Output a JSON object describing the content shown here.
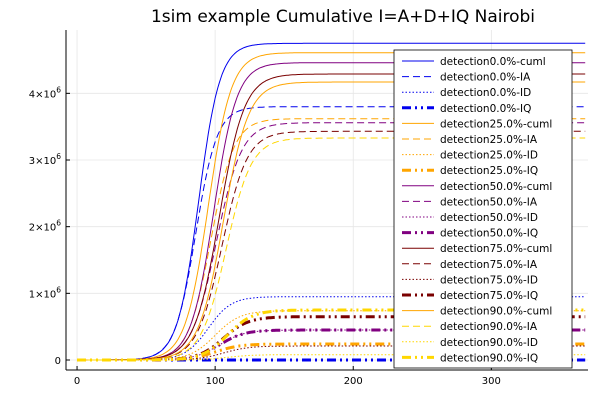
{
  "chart_data": {
    "type": "line",
    "title": "1sim example Cumulative I=A+D+IQ Nairobi",
    "xlabel": "",
    "ylabel": "",
    "xlim": [
      -8,
      370
    ],
    "ylim": [
      -150000,
      4950000
    ],
    "x_ticks": [
      0,
      100,
      200,
      300
    ],
    "x_tick_labels": [
      "0",
      "100",
      "200",
      "300"
    ],
    "y_ticks": [
      0,
      1000000,
      2000000,
      3000000,
      4000000
    ],
    "y_tick_labels": [
      {
        "base": "0",
        "exp": ""
      },
      {
        "base": "1×10",
        "exp": "6"
      },
      {
        "base": "2×10",
        "exp": "6"
      },
      {
        "base": "3×10",
        "exp": "6"
      },
      {
        "base": "4×10",
        "exp": "6"
      }
    ],
    "grid": true,
    "legend_position": "top-right",
    "colors": {
      "blue": "#0000ee",
      "orange": "#ffa500",
      "purple": "#800080",
      "maroon": "#7a0000",
      "gold": "#ffd700"
    },
    "series": [
      {
        "name": "detection0.0%-cuml",
        "color": "#0000ee",
        "style": "solid",
        "width": 1,
        "plateau": 4750000,
        "midpoint": 88,
        "rate": 0.13
      },
      {
        "name": "detection0.0%-IA",
        "color": "#0000ee",
        "style": "dash",
        "width": 1,
        "plateau": 3800000,
        "midpoint": 86,
        "rate": 0.13
      },
      {
        "name": "detection0.0%-ID",
        "color": "#0000ee",
        "style": "dot",
        "width": 1,
        "plateau": 950000,
        "midpoint": 95,
        "rate": 0.12
      },
      {
        "name": "detection0.0%-IQ",
        "color": "#0000ee",
        "style": "dashdotdot",
        "width": 3,
        "plateau": 0,
        "midpoint": 95,
        "rate": 0.12
      },
      {
        "name": "detection25.0%-cuml",
        "color": "#ffa500",
        "style": "solid",
        "width": 1,
        "plateau": 4610000,
        "midpoint": 95,
        "rate": 0.12
      },
      {
        "name": "detection25.0%-IA",
        "color": "#ffa500",
        "style": "dash",
        "width": 1,
        "plateau": 3620000,
        "midpoint": 97,
        "rate": 0.12
      },
      {
        "name": "detection25.0%-ID",
        "color": "#ffa500",
        "style": "dot",
        "width": 1,
        "plateau": 740000,
        "midpoint": 100,
        "rate": 0.11
      },
      {
        "name": "detection25.0%-IQ",
        "color": "#ffa500",
        "style": "dashdotdot",
        "width": 3,
        "plateau": 240000,
        "midpoint": 100,
        "rate": 0.11
      },
      {
        "name": "detection50.0%-cuml",
        "color": "#800080",
        "style": "solid",
        "width": 1,
        "plateau": 4460000,
        "midpoint": 99,
        "rate": 0.12
      },
      {
        "name": "detection50.0%-IA",
        "color": "#800080",
        "style": "dash",
        "width": 1,
        "plateau": 3560000,
        "midpoint": 101,
        "rate": 0.11
      },
      {
        "name": "detection50.0%-ID",
        "color": "#800080",
        "style": "dot",
        "width": 1,
        "plateau": 450000,
        "midpoint": 103,
        "rate": 0.11
      },
      {
        "name": "detection50.0%-IQ",
        "color": "#800080",
        "style": "dashdotdot",
        "width": 3,
        "plateau": 450000,
        "midpoint": 103,
        "rate": 0.11
      },
      {
        "name": "detection75.0%-cuml",
        "color": "#7a0000",
        "style": "solid",
        "width": 1,
        "plateau": 4290000,
        "midpoint": 103,
        "rate": 0.11
      },
      {
        "name": "detection75.0%-IA",
        "color": "#7a0000",
        "style": "dash",
        "width": 1,
        "plateau": 3430000,
        "midpoint": 105,
        "rate": 0.11
      },
      {
        "name": "detection75.0%-ID",
        "color": "#7a0000",
        "style": "dot",
        "width": 1,
        "plateau": 210000,
        "midpoint": 106,
        "rate": 0.11
      },
      {
        "name": "detection75.0%-IQ",
        "color": "#7a0000",
        "style": "dashdotdot",
        "width": 3,
        "plateau": 650000,
        "midpoint": 106,
        "rate": 0.11
      },
      {
        "name": "detection90.0%-cuml",
        "color": "#ffa500",
        "style": "solid",
        "width": 1,
        "plateau": 4170000,
        "midpoint": 106,
        "rate": 0.11
      },
      {
        "name": "detection90.0%-IA",
        "color": "#ffd700",
        "style": "dash",
        "width": 1,
        "plateau": 3330000,
        "midpoint": 108,
        "rate": 0.11
      },
      {
        "name": "detection90.0%-ID",
        "color": "#ffd700",
        "style": "dot",
        "width": 1,
        "plateau": 80000,
        "midpoint": 109,
        "rate": 0.11
      },
      {
        "name": "detection90.0%-IQ",
        "color": "#ffd700",
        "style": "dashdotdot",
        "width": 3,
        "plateau": 750000,
        "midpoint": 109,
        "rate": 0.11
      }
    ]
  }
}
